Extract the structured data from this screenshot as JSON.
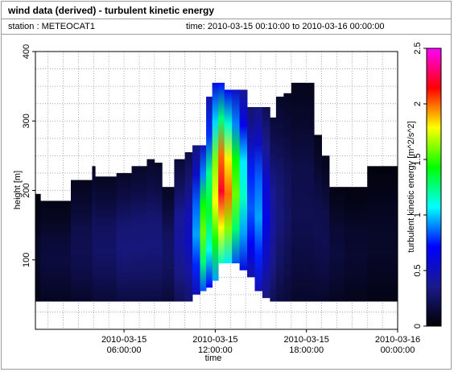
{
  "header": {
    "title": "wind data (derived) - turbulent kinetic energy",
    "station": "station : METEOCAT1",
    "time_range": "time: 2010-03-15 00:10:00 to 2010-03-16 00:00:00"
  },
  "chart_data": {
    "type": "heatmap",
    "xlabel": "time",
    "ylabel": "height [m]",
    "colorbar_label": "turbulent kinetic energy [m^2/s^2]",
    "x_ticks": [
      {
        "hour": 6,
        "line1": "2010-03-15",
        "line2": "06:00:00"
      },
      {
        "hour": 12,
        "line1": "2010-03-15",
        "line2": "12:00:00"
      },
      {
        "hour": 18,
        "line1": "2010-03-15",
        "line2": "18:00:00"
      },
      {
        "hour": 24,
        "line1": "2010-03-16",
        "line2": "00:00:00"
      }
    ],
    "xlim_hours": [
      0.17,
      24
    ],
    "y_ticks": [
      100,
      200,
      300,
      400
    ],
    "ylim": [
      0,
      400
    ],
    "colorbar_ticks": [
      "0",
      "0.5",
      "1",
      "1.5",
      "2",
      "2.5"
    ],
    "colorbar_range": [
      0,
      2.5
    ],
    "colormap": [
      "#000000",
      "#1a1a8c",
      "#0000ff",
      "#00ffff",
      "#00ff00",
      "#ffff00",
      "#ff0000",
      "#ff00ff"
    ],
    "profiles": [
      {
        "t0": 0.17,
        "t1": 0.5,
        "bottom": 40,
        "top": 195,
        "level": 0.1
      },
      {
        "t0": 0.5,
        "t1": 2.5,
        "bottom": 40,
        "top": 185,
        "level": 0.15
      },
      {
        "t0": 2.5,
        "t1": 3.9,
        "bottom": 40,
        "top": 215,
        "level": 0.2
      },
      {
        "t0": 3.9,
        "t1": 4.1,
        "bottom": 40,
        "top": 235,
        "level": 0.25
      },
      {
        "t0": 4.1,
        "t1": 5.5,
        "bottom": 40,
        "top": 220,
        "level": 0.25
      },
      {
        "t0": 5.5,
        "t1": 6.5,
        "bottom": 40,
        "top": 225,
        "level": 0.3
      },
      {
        "t0": 6.5,
        "t1": 7.5,
        "bottom": 40,
        "top": 235,
        "level": 0.3
      },
      {
        "t0": 7.5,
        "t1": 8.0,
        "bottom": 40,
        "top": 245,
        "level": 0.3
      },
      {
        "t0": 8.0,
        "t1": 8.5,
        "bottom": 40,
        "top": 240,
        "level": 0.3
      },
      {
        "t0": 8.5,
        "t1": 9.3,
        "bottom": 40,
        "top": 205,
        "level": 0.25
      },
      {
        "t0": 9.3,
        "t1": 10.0,
        "bottom": 40,
        "top": 245,
        "level": 0.4
      },
      {
        "t0": 10.0,
        "t1": 10.5,
        "bottom": 40,
        "top": 255,
        "level": 0.5
      },
      {
        "t0": 10.5,
        "t1": 11.0,
        "bottom": 50,
        "top": 265,
        "level": 0.9
      },
      {
        "t0": 11.0,
        "t1": 11.4,
        "bottom": 55,
        "top": 265,
        "level": 1.5
      },
      {
        "t0": 11.4,
        "t1": 11.8,
        "bottom": 60,
        "top": 335,
        "level": 1.3
      },
      {
        "t0": 11.8,
        "t1": 12.2,
        "bottom": 70,
        "top": 355,
        "level": 1.7
      },
      {
        "t0": 12.2,
        "t1": 12.6,
        "bottom": 95,
        "top": 355,
        "level": 2.1
      },
      {
        "t0": 12.6,
        "t1": 13.1,
        "bottom": 95,
        "top": 345,
        "level": 1.9
      },
      {
        "t0": 13.1,
        "t1": 13.6,
        "bottom": 95,
        "top": 345,
        "level": 1.5
      },
      {
        "t0": 13.6,
        "t1": 14.1,
        "bottom": 85,
        "top": 345,
        "level": 1.1
      },
      {
        "t0": 14.1,
        "t1": 14.6,
        "bottom": 75,
        "top": 320,
        "level": 0.8
      },
      {
        "t0": 14.6,
        "t1": 15.1,
        "bottom": 55,
        "top": 320,
        "level": 0.9
      },
      {
        "t0": 15.1,
        "t1": 15.6,
        "bottom": 45,
        "top": 320,
        "level": 0.6
      },
      {
        "t0": 15.6,
        "t1": 16.0,
        "bottom": 40,
        "top": 305,
        "level": 0.4
      },
      {
        "t0": 16.0,
        "t1": 16.5,
        "bottom": 40,
        "top": 335,
        "level": 0.3
      },
      {
        "t0": 16.5,
        "t1": 17.0,
        "bottom": 40,
        "top": 340,
        "level": 0.25
      },
      {
        "t0": 17.0,
        "t1": 18.5,
        "bottom": 40,
        "top": 355,
        "level": 0.2
      },
      {
        "t0": 18.5,
        "t1": 19.0,
        "bottom": 40,
        "top": 280,
        "level": 0.2
      },
      {
        "t0": 19.0,
        "t1": 19.5,
        "bottom": 40,
        "top": 250,
        "level": 0.2
      },
      {
        "t0": 19.5,
        "t1": 20.5,
        "bottom": 40,
        "top": 205,
        "level": 0.15
      },
      {
        "t0": 20.5,
        "t1": 22.0,
        "bottom": 40,
        "top": 205,
        "level": 0.12
      },
      {
        "t0": 22.0,
        "t1": 24.0,
        "bottom": 40,
        "top": 235,
        "level": 0.1
      }
    ]
  }
}
